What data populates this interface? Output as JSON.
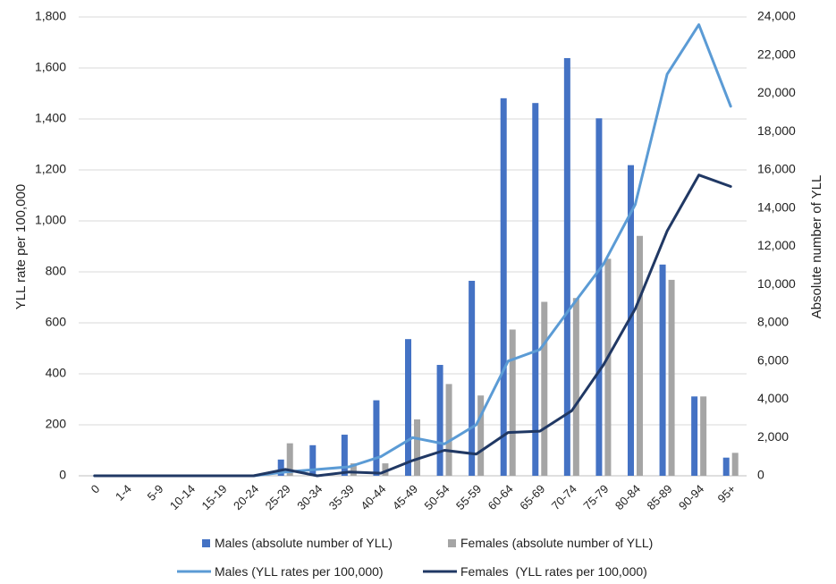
{
  "chart_data": {
    "type": "bar",
    "categories": [
      "0",
      "1-4",
      "5-9",
      "10-14",
      "15-19",
      "20-24",
      "25-29",
      "30-34",
      "35-39",
      "40-44",
      "45-49",
      "50-54",
      "55-59",
      "60-64",
      "65-69",
      "70-74",
      "75-79",
      "80-84",
      "85-89",
      "90-94",
      "95+"
    ],
    "ylabel_left": "YLL rate per 100,000",
    "ylabel_right": "Absolute number of YLL",
    "ylim_left": [
      0,
      1800
    ],
    "ylim_right": [
      0,
      24000
    ],
    "yticks_left": [
      "0",
      "200",
      "400",
      "600",
      "800",
      "1,000",
      "1,200",
      "1,400",
      "1,600",
      "1,800"
    ],
    "yticks_right": [
      "0",
      "2,000",
      "4,000",
      "6,000",
      "8,000",
      "10,000",
      "12,000",
      "14,000",
      "16,000",
      "18,000",
      "20,000",
      "22,000",
      "24,000"
    ],
    "grid": "horizontal",
    "legend_position": "bottom",
    "series": [
      {
        "name": "Males (absolute number of YLL)",
        "kind": "bar",
        "axis": "right",
        "color": "#4472C4",
        "values": [
          0,
          0,
          0,
          0,
          0,
          0,
          850,
          1600,
          2150,
          3950,
          7150,
          5800,
          10200,
          19750,
          19500,
          21850,
          18700,
          16250,
          11050,
          4150,
          950
        ]
      },
      {
        "name": "Females (absolute number of YLL)",
        "kind": "bar",
        "axis": "right",
        "color": "#A5A5A5",
        "values": [
          0,
          0,
          0,
          0,
          0,
          0,
          1700,
          0,
          650,
          650,
          2950,
          4800,
          4200,
          7650,
          9100,
          9300,
          11350,
          12550,
          10250,
          4150,
          1200
        ]
      },
      {
        "name": "Males (YLL rates per 100,000)",
        "kind": "line",
        "axis": "left",
        "color": "#5B9BD5",
        "values": [
          0,
          0,
          0,
          0,
          0,
          0,
          15,
          25,
          35,
          75,
          150,
          125,
          200,
          450,
          495,
          665,
          830,
          1065,
          1575,
          1770,
          1450
        ]
      },
      {
        "name": "Females  (YLL rates per 100,000)",
        "kind": "line",
        "axis": "left",
        "color": "#203864",
        "values": [
          0,
          0,
          0,
          0,
          0,
          0,
          25,
          0,
          15,
          10,
          60,
          100,
          85,
          170,
          175,
          255,
          435,
          655,
          960,
          1180,
          1135
        ]
      }
    ]
  }
}
